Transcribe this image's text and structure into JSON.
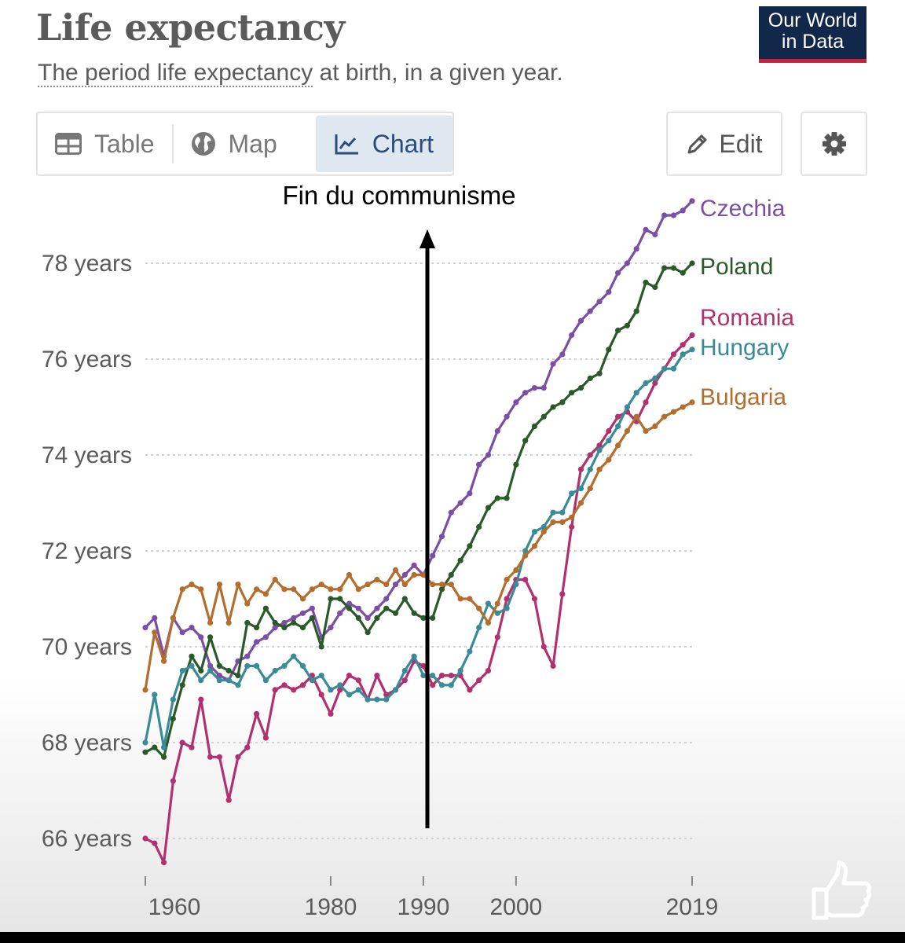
{
  "header": {
    "title": "Life expectancy",
    "subtitle_link": "The period life expectancy",
    "subtitle_rest": " at birth, in a given year.",
    "logo_line1": "Our World",
    "logo_line2": "in Data"
  },
  "tabs": [
    {
      "label": "Table",
      "icon": "table-icon"
    },
    {
      "label": "Map",
      "icon": "globe-icon"
    },
    {
      "label": "Chart",
      "icon": "line-chart-icon",
      "active": true
    }
  ],
  "actions": {
    "edit_label": "Edit",
    "settings_icon": "gear-icon"
  },
  "annotation": "Fin du communisme",
  "chart_data": {
    "type": "line",
    "title": "Life expectancy",
    "subtitle": "The period life expectancy at birth, in a given year.",
    "x_ticks": [
      1960,
      1980,
      1990,
      2000,
      2019
    ],
    "y_ticks": [
      66,
      68,
      70,
      72,
      74,
      76,
      78
    ],
    "y_tick_labels": [
      "66 years",
      "68 years",
      "70 years",
      "72 years",
      "74 years",
      "76 years",
      "78 years"
    ],
    "xlim": [
      1960,
      2019
    ],
    "ylim": [
      65.5,
      79.5
    ],
    "grid": "horizontal dotted",
    "legend": "labels at line ends",
    "annotation": {
      "text": "Fin du communisme",
      "x": 1990,
      "style": "vertical arrow"
    },
    "x": [
      1960,
      1961,
      1962,
      1963,
      1964,
      1965,
      1966,
      1967,
      1968,
      1969,
      1970,
      1971,
      1972,
      1973,
      1974,
      1975,
      1976,
      1977,
      1978,
      1979,
      1980,
      1981,
      1982,
      1983,
      1984,
      1985,
      1986,
      1987,
      1988,
      1989,
      1990,
      1991,
      1992,
      1993,
      1994,
      1995,
      1996,
      1997,
      1998,
      1999,
      2000,
      2001,
      2002,
      2003,
      2004,
      2005,
      2006,
      2007,
      2008,
      2009,
      2010,
      2011,
      2012,
      2013,
      2014,
      2015,
      2016,
      2017,
      2018,
      2019
    ],
    "series": [
      {
        "name": "Czechia",
        "color": "#7b4fa6",
        "values": [
          70.4,
          70.6,
          69.8,
          70.6,
          70.3,
          70.4,
          70.2,
          69.6,
          69.4,
          69.3,
          69.7,
          69.8,
          70.1,
          70.2,
          70.4,
          70.5,
          70.6,
          70.7,
          70.8,
          70.2,
          70.4,
          70.7,
          70.9,
          70.8,
          70.6,
          70.8,
          71.0,
          71.3,
          71.5,
          71.7,
          71.5,
          71.9,
          72.3,
          72.8,
          73.0,
          73.2,
          73.8,
          74.0,
          74.5,
          74.8,
          75.1,
          75.3,
          75.4,
          75.4,
          75.9,
          76.1,
          76.5,
          76.8,
          77.0,
          77.2,
          77.4,
          77.8,
          78.0,
          78.3,
          78.7,
          78.6,
          79.0,
          79.0,
          79.1,
          79.3
        ]
      },
      {
        "name": "Poland",
        "color": "#2a5a2a",
        "values": [
          67.8,
          67.9,
          67.7,
          68.5,
          69.2,
          69.8,
          69.5,
          70.2,
          69.6,
          69.5,
          69.4,
          70.5,
          70.4,
          70.8,
          70.5,
          70.4,
          70.5,
          70.4,
          70.6,
          70.0,
          71.0,
          71.0,
          70.8,
          70.6,
          70.3,
          70.6,
          70.8,
          70.7,
          71.0,
          70.7,
          70.6,
          70.6,
          71.2,
          71.5,
          71.8,
          72.1,
          72.5,
          72.9,
          73.1,
          73.1,
          73.8,
          74.3,
          74.6,
          74.8,
          75.0,
          75.1,
          75.3,
          75.4,
          75.6,
          75.7,
          76.2,
          76.6,
          76.7,
          77.0,
          77.6,
          77.5,
          77.9,
          77.9,
          77.8,
          78.0
        ]
      },
      {
        "name": "Romania",
        "color": "#b2306e",
        "values": [
          66.0,
          65.9,
          65.5,
          67.2,
          68.0,
          67.9,
          68.9,
          67.7,
          67.7,
          66.8,
          67.7,
          67.9,
          68.6,
          68.1,
          69.1,
          69.2,
          69.1,
          69.2,
          69.4,
          69.0,
          68.6,
          69.1,
          69.4,
          69.3,
          68.9,
          69.4,
          69.0,
          69.1,
          69.3,
          69.7,
          69.6,
          69.2,
          69.4,
          69.4,
          69.4,
          69.1,
          69.3,
          69.5,
          70.2,
          71.0,
          71.4,
          71.4,
          71.0,
          70.0,
          69.6,
          71.1,
          72.5,
          73.7,
          74.0,
          74.2,
          74.5,
          74.8,
          74.9,
          74.7,
          75.1,
          75.5,
          75.8,
          76.1,
          76.3,
          76.5
        ]
      },
      {
        "name": "Hungary",
        "color": "#3a8b99",
        "values": [
          68.0,
          69.0,
          67.9,
          68.9,
          69.5,
          69.6,
          69.3,
          69.5,
          69.3,
          69.3,
          69.2,
          69.6,
          69.6,
          69.3,
          69.5,
          69.6,
          69.8,
          69.6,
          69.3,
          69.4,
          69.1,
          69.2,
          69.0,
          69.1,
          68.9,
          68.9,
          68.9,
          69.1,
          69.5,
          69.8,
          69.4,
          69.4,
          69.2,
          69.2,
          69.5,
          69.9,
          70.4,
          70.9,
          70.7,
          70.8,
          71.3,
          72.0,
          72.4,
          72.5,
          72.8,
          72.8,
          73.2,
          73.3,
          73.7,
          74.1,
          74.3,
          74.6,
          75.0,
          75.3,
          75.5,
          75.6,
          75.8,
          75.8,
          76.1,
          76.2
        ]
      },
      {
        "name": "Bulgaria",
        "color": "#b36e2e",
        "values": [
          69.1,
          70.3,
          69.7,
          70.6,
          71.2,
          71.3,
          71.2,
          70.5,
          71.3,
          70.5,
          71.3,
          70.9,
          71.2,
          71.1,
          71.4,
          71.2,
          71.2,
          71.0,
          71.2,
          71.3,
          71.2,
          71.2,
          71.5,
          71.2,
          71.3,
          71.4,
          71.3,
          71.6,
          71.3,
          71.5,
          71.5,
          71.3,
          71.3,
          71.3,
          71.0,
          71.0,
          70.8,
          70.5,
          70.9,
          71.4,
          71.6,
          71.9,
          72.1,
          72.4,
          72.6,
          72.6,
          72.7,
          73.0,
          73.3,
          73.7,
          73.9,
          74.2,
          74.5,
          74.8,
          74.5,
          74.6,
          74.8,
          74.9,
          75.0,
          75.1
        ]
      }
    ]
  }
}
